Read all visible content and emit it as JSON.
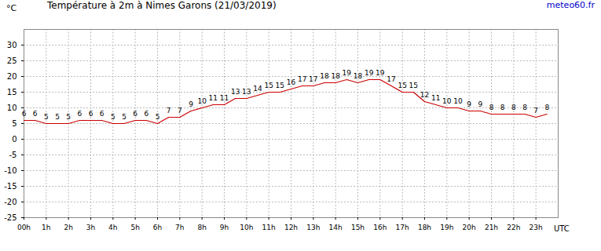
{
  "chart_data": {
    "type": "line",
    "title": "Température à 2m à Nimes Garons (21/03/2019)",
    "source": "meteo60.fr",
    "y_label": "°C",
    "x_label": "UTC",
    "x": [
      0,
      0.5,
      1,
      1.5,
      2,
      2.5,
      3,
      3.5,
      4,
      4.5,
      5,
      5.5,
      6,
      6.5,
      7,
      7.5,
      8,
      8.5,
      9,
      9.5,
      10,
      10.5,
      11,
      11.5,
      12,
      12.5,
      13,
      13.5,
      14,
      14.5,
      15,
      15.5,
      16,
      16.5,
      17,
      17.5,
      18,
      18.5,
      19,
      19.5,
      20,
      20.5,
      21,
      21.5,
      22,
      22.5,
      23,
      23.5
    ],
    "values": [
      6,
      6,
      5,
      5,
      5,
      6,
      6,
      6,
      5,
      5,
      6,
      6,
      5,
      7,
      7,
      9,
      10,
      11,
      11,
      13,
      13,
      14,
      15,
      15,
      16,
      17,
      17,
      18,
      18,
      19,
      18,
      19,
      19,
      17,
      15,
      15,
      12,
      11,
      10,
      10,
      9,
      9,
      8,
      8,
      8,
      8,
      7,
      8
    ],
    "color": "#cc0000",
    "data_labels": true,
    "grid": true,
    "xlim": [
      0,
      24
    ],
    "xticks": [
      {
        "value": 0,
        "label": "00h"
      },
      {
        "value": 1,
        "label": "1h"
      },
      {
        "value": 2,
        "label": "2h"
      },
      {
        "value": 3,
        "label": "3h"
      },
      {
        "value": 4,
        "label": "4h"
      },
      {
        "value": 5,
        "label": "5h"
      },
      {
        "value": 6,
        "label": "6h"
      },
      {
        "value": 7,
        "label": "7h"
      },
      {
        "value": 8,
        "label": "8h"
      },
      {
        "value": 9,
        "label": "9h"
      },
      {
        "value": 10,
        "label": "10h"
      },
      {
        "value": 11,
        "label": "11h"
      },
      {
        "value": 12,
        "label": "12h"
      },
      {
        "value": 13,
        "label": "13h"
      },
      {
        "value": 14,
        "label": "14h"
      },
      {
        "value": 15,
        "label": "15h"
      },
      {
        "value": 16,
        "label": "16h"
      },
      {
        "value": 17,
        "label": "17h"
      },
      {
        "value": 18,
        "label": "18h"
      },
      {
        "value": 19,
        "label": "19h"
      },
      {
        "value": 20,
        "label": "20h"
      },
      {
        "value": 21,
        "label": "21h"
      },
      {
        "value": 22,
        "label": "22h"
      },
      {
        "value": 23,
        "label": "23h"
      }
    ],
    "ylim": [
      -25,
      35
    ],
    "yticks": [
      -25,
      -20,
      -15,
      -10,
      -5,
      0,
      5,
      10,
      15,
      20,
      25,
      30
    ]
  }
}
